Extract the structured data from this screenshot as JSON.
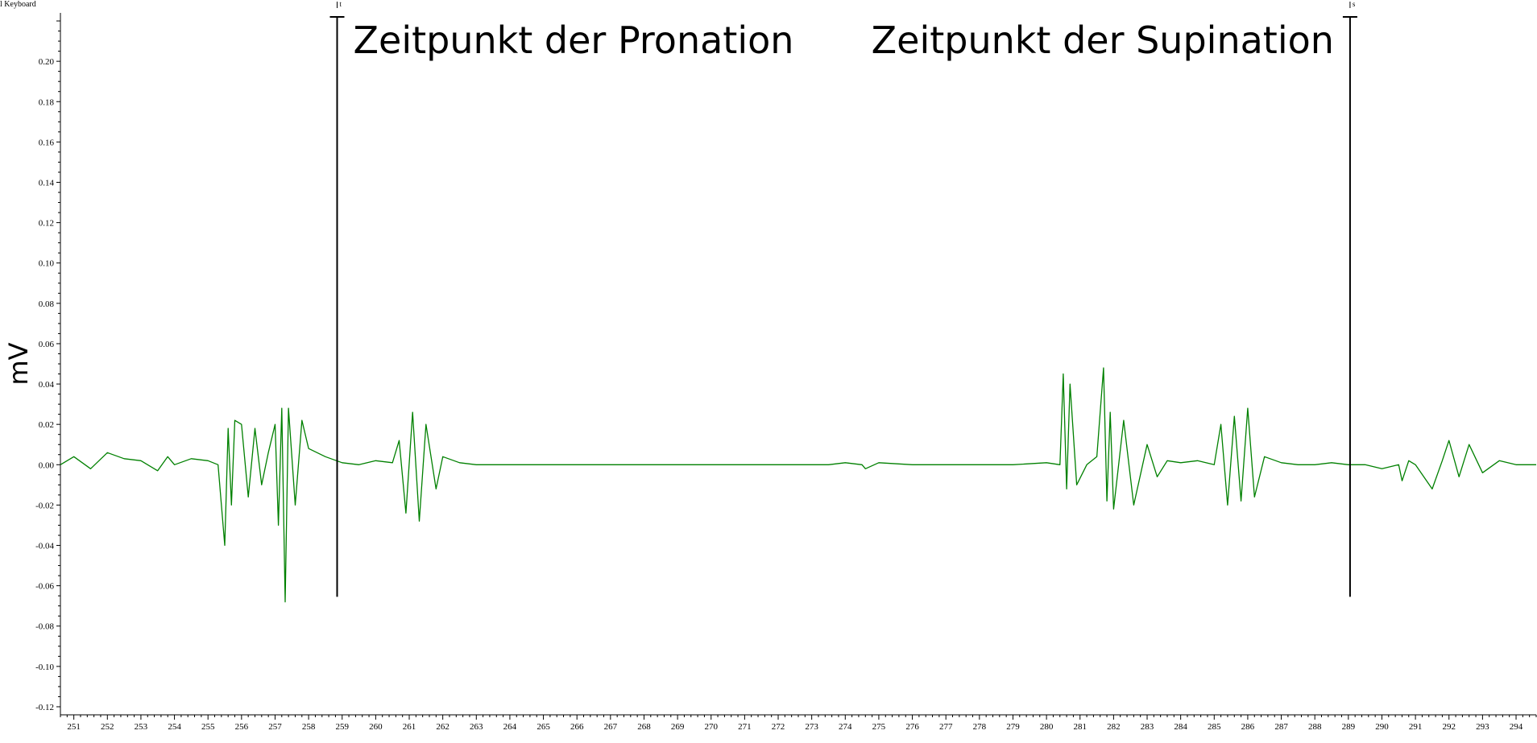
{
  "channel_label": "l Keyboard",
  "chart_data": {
    "type": "line",
    "title": "",
    "xlabel": "",
    "ylabel": "mV",
    "xlim": [
      250.6,
      294.6
    ],
    "ylim": [
      -0.124,
      0.224
    ],
    "grid": false,
    "series_color": "#008000",
    "x_ticks": [
      251,
      252,
      253,
      254,
      255,
      256,
      257,
      258,
      259,
      260,
      261,
      262,
      263,
      264,
      265,
      266,
      267,
      268,
      269,
      270,
      271,
      272,
      273,
      274,
      275,
      276,
      277,
      278,
      279,
      280,
      281,
      282,
      283,
      284,
      285,
      286,
      287,
      288,
      289,
      290,
      291,
      292,
      293,
      294
    ],
    "x_tick_labels": [
      "251",
      "252",
      "253",
      "254",
      "255",
      "256",
      "257",
      "258",
      "259",
      "260",
      "261",
      "262",
      "263",
      "264",
      "265",
      "266",
      "267",
      "268",
      "269",
      "270",
      "271",
      "272",
      "273",
      "274",
      "275",
      "276",
      "277",
      "278",
      "279",
      "280",
      "281",
      "282",
      "283",
      "284",
      "285",
      "286",
      "287",
      "288",
      "289",
      "290",
      "291",
      "292",
      "293",
      "294"
    ],
    "y_ticks": [
      0.2,
      0.18,
      0.16,
      0.14,
      0.12,
      0.1,
      0.08,
      0.06,
      0.04,
      0.02,
      0.0,
      -0.02,
      -0.04,
      -0.06,
      -0.08,
      -0.1,
      -0.12
    ],
    "y_tick_labels": [
      "0.20",
      "0.18",
      "0.16",
      "0.14",
      "0.12",
      "0.10",
      "0.08",
      "0.06",
      "0.04",
      "0.02",
      "0.00",
      "-0.02",
      "-0.04",
      "-0.06",
      "-0.08",
      "-0.10",
      "-0.12"
    ],
    "markers": [
      {
        "x": 258.85,
        "top_label": "t",
        "annotation": "Zeitpunkt der Pronation",
        "annotation_side": "right"
      },
      {
        "x": 289.05,
        "top_label": "s",
        "annotation": "Zeitpunkt der Supination",
        "annotation_side": "left"
      }
    ],
    "series": [
      {
        "x": [
          250.6,
          251.0,
          251.5,
          252.0,
          252.5,
          253.0,
          253.5,
          253.8,
          254.0,
          254.5,
          255.0,
          255.3,
          255.5,
          255.6,
          255.7,
          255.8,
          256.0,
          256.2,
          256.4,
          256.6,
          256.8,
          257.0,
          257.1,
          257.2,
          257.3,
          257.4,
          257.6,
          257.8,
          258.0,
          258.5,
          259.0,
          259.5,
          260.0,
          260.5,
          260.7,
          260.9,
          261.1,
          261.3,
          261.5,
          261.8,
          262.0,
          262.5,
          263.0,
          264.0,
          265.0,
          266.0,
          268.0,
          270.0,
          272.0,
          273.5,
          274.0,
          274.5,
          274.6,
          275.0,
          276.0,
          277.0,
          278.0,
          279.0,
          280.0,
          280.4,
          280.5,
          280.6,
          280.7,
          280.9,
          281.2,
          281.5,
          281.7,
          281.8,
          281.9,
          282.0,
          282.3,
          282.6,
          283.0,
          283.3,
          283.6,
          284.0,
          284.5,
          285.0,
          285.2,
          285.4,
          285.6,
          285.8,
          286.0,
          286.2,
          286.5,
          287.0,
          287.5,
          288.0,
          288.5,
          289.0,
          289.5,
          290.0,
          290.5,
          290.6,
          290.8,
          291.0,
          291.5,
          291.8,
          292.0,
          292.3,
          292.6,
          293.0,
          293.5,
          294.0,
          294.6
        ],
        "y": [
          0.0,
          0.004,
          -0.002,
          0.006,
          0.003,
          0.002,
          -0.003,
          0.004,
          0.0,
          0.003,
          0.002,
          0.0,
          -0.04,
          0.018,
          -0.02,
          0.022,
          0.02,
          -0.016,
          0.018,
          -0.01,
          0.006,
          0.02,
          -0.03,
          0.028,
          -0.068,
          0.028,
          -0.02,
          0.022,
          0.008,
          0.004,
          0.001,
          0.0,
          0.002,
          0.001,
          0.012,
          -0.024,
          0.026,
          -0.028,
          0.02,
          -0.012,
          0.004,
          0.001,
          0.0,
          0.0,
          0.0,
          0.0,
          0.0,
          0.0,
          0.0,
          0.0,
          0.001,
          0.0,
          -0.002,
          0.001,
          0.0,
          0.0,
          0.0,
          0.0,
          0.001,
          0.0,
          0.045,
          -0.012,
          0.04,
          -0.01,
          0.0,
          0.004,
          0.048,
          -0.018,
          0.026,
          -0.022,
          0.022,
          -0.02,
          0.01,
          -0.006,
          0.002,
          0.001,
          0.002,
          0.0,
          0.02,
          -0.02,
          0.024,
          -0.018,
          0.028,
          -0.016,
          0.004,
          0.001,
          0.0,
          0.0,
          0.001,
          0.0,
          0.0,
          -0.002,
          0.0,
          -0.008,
          0.002,
          0.0,
          -0.012,
          0.002,
          0.012,
          -0.006,
          0.01,
          -0.004,
          0.002,
          0.0,
          0.0
        ]
      }
    ]
  }
}
